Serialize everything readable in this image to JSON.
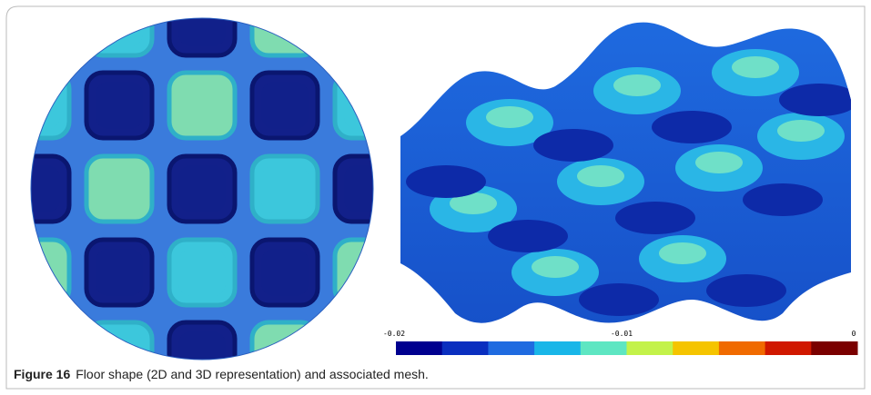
{
  "figure": {
    "label": "Figure 16",
    "caption": "Floor shape (2D and 3D representation) and associated mesh.",
    "colorbar": {
      "ticks": [
        "-0.02",
        "-0.01",
        "0"
      ],
      "colors": [
        "#00008f",
        "#0a2fbf",
        "#1f6be0",
        "#19b6e8",
        "#5ee6c2",
        "#c3f24a",
        "#f5c400",
        "#f06a00",
        "#d01800",
        "#7a0000"
      ]
    }
  }
}
